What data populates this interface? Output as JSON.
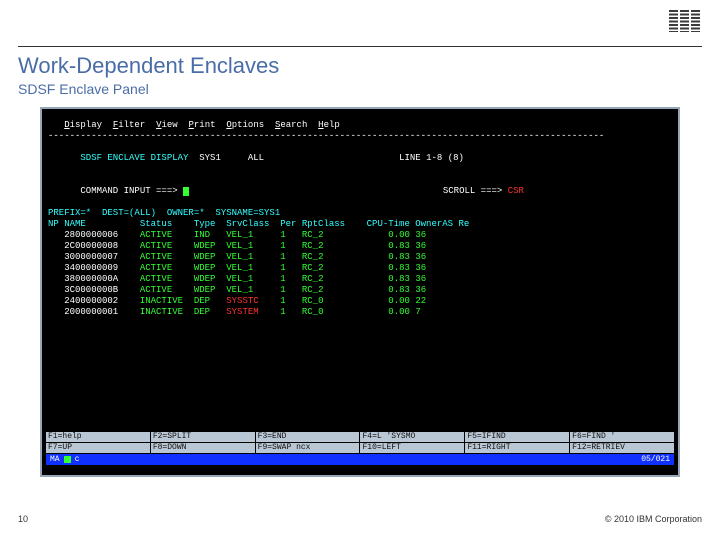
{
  "slide": {
    "title": "Work-Dependent Enclaves",
    "subtitle": "SDSF Enclave Panel",
    "page_number": "10",
    "copyright": "© 2010 IBM Corporation"
  },
  "logo_name": "ibm-logo",
  "terminal": {
    "colors": {
      "bg": "#000000",
      "fg": "#33ff33",
      "white": "#ffffff",
      "cyan": "#33ffff",
      "red": "#ff3333",
      "blue": "#4466ff",
      "fkey_bg": "#b9c6d3",
      "status_bg": "#1030ff"
    },
    "menu": [
      "Display",
      "Filter",
      "View",
      "Print",
      "Options",
      "Search",
      "Help"
    ],
    "header": {
      "panel": "SDSF ENCLAVE DISPLAY",
      "sys": "SYS1",
      "scope": "ALL",
      "line_info": "LINE 1-8 (8)"
    },
    "command_label": "COMMAND INPUT ===>",
    "scroll_label": "SCROLL ===>",
    "scroll_value": "CSR",
    "prefix_line": "PREFIX=*  DEST=(ALL)  OWNER=*  SYSNAME=SYS1",
    "columns": [
      "NP",
      "NAME",
      "Status",
      "Type",
      "SrvClass",
      "Per",
      "RptClass",
      "CPU-Time",
      "OwnerAS",
      "Re"
    ],
    "rows": [
      {
        "name": "2800000006",
        "status": "ACTIVE",
        "type": "IND",
        "srv": "VEL_1",
        "per": "1",
        "rpt": "RC_2",
        "cpu": "0.00",
        "own": "36"
      },
      {
        "name": "2C00000008",
        "status": "ACTIVE",
        "type": "WDEP",
        "srv": "VEL_1",
        "per": "1",
        "rpt": "RC_2",
        "cpu": "0.83",
        "own": "36"
      },
      {
        "name": "3000000007",
        "status": "ACTIVE",
        "type": "WDEP",
        "srv": "VEL_1",
        "per": "1",
        "rpt": "RC_2",
        "cpu": "0.83",
        "own": "36"
      },
      {
        "name": "3400000009",
        "status": "ACTIVE",
        "type": "WDEP",
        "srv": "VEL_1",
        "per": "1",
        "rpt": "RC_2",
        "cpu": "0.83",
        "own": "36"
      },
      {
        "name": "380000000A",
        "status": "ACTIVE",
        "type": "WDEP",
        "srv": "VEL_1",
        "per": "1",
        "rpt": "RC_2",
        "cpu": "0.83",
        "own": "36"
      },
      {
        "name": "3C0000000B",
        "status": "ACTIVE",
        "type": "WDEP",
        "srv": "VEL_1",
        "per": "1",
        "rpt": "RC_2",
        "cpu": "0.83",
        "own": "36"
      },
      {
        "name": "2400000002",
        "status": "INACTIVE",
        "type": "DEP",
        "srv": "SYSSTC",
        "per": "1",
        "rpt": "RC_0",
        "cpu": "0.00",
        "own": "22"
      },
      {
        "name": "2000000001",
        "status": "INACTIVE",
        "type": "DEP",
        "srv": "SYSTEM",
        "per": "1",
        "rpt": "RC_0",
        "cpu": "0.00",
        "own": "7"
      }
    ],
    "fkeys_row1": [
      {
        "k": "F1",
        "l": "=help"
      },
      {
        "k": "F2",
        "l": "=SPLIT"
      },
      {
        "k": "F3",
        "l": "=END"
      },
      {
        "k": "F4",
        "l": "=L 'SYSMO"
      },
      {
        "k": "F5",
        "l": "=IFIND"
      },
      {
        "k": "F6",
        "l": "=FIND '"
      }
    ],
    "fkeys_row2": [
      {
        "k": "F7",
        "l": "=UP"
      },
      {
        "k": "F8",
        "l": "=DOWN"
      },
      {
        "k": "F9",
        "l": "=SWAP ncx"
      },
      {
        "k": "F10",
        "l": "=LEFT"
      },
      {
        "k": "F11",
        "l": "=RIGHT"
      },
      {
        "k": "F12",
        "l": "=RETRIEV"
      }
    ],
    "status_left": "MA",
    "status_mid": "c",
    "status_right": "05/021"
  }
}
